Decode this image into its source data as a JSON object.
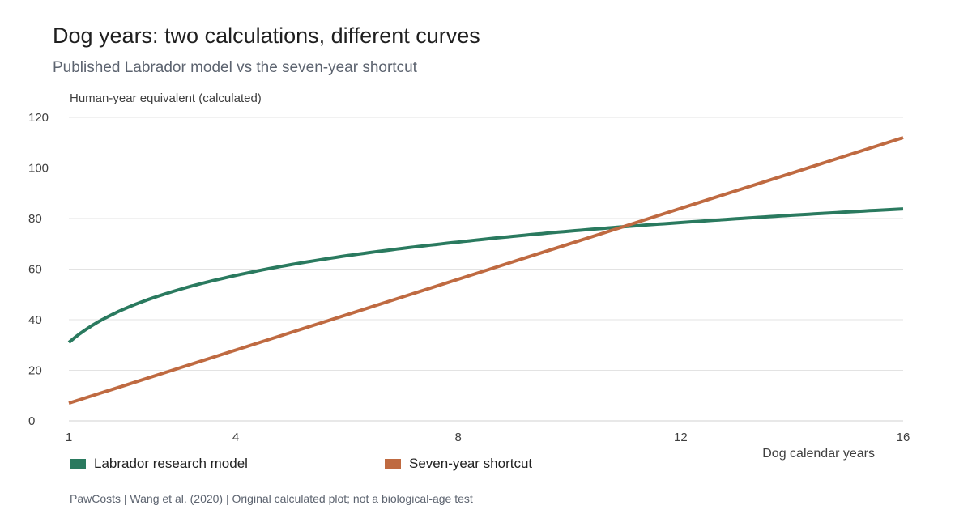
{
  "chart_data": {
    "type": "line",
    "title": "Dog years: two calculations, different curves",
    "subtitle": "Published Labrador model vs the seven-year shortcut",
    "ylabel": "Human-year equivalent (calculated)",
    "xlabel": "Dog calendar years",
    "xlim": [
      1,
      16
    ],
    "ylim": [
      0,
      120
    ],
    "x_ticks": [
      1,
      4,
      8,
      12,
      16
    ],
    "y_ticks": [
      0,
      20,
      40,
      60,
      80,
      100,
      120
    ],
    "grid": "horizontal",
    "legend_position": "bottom-left",
    "x": [
      1,
      2,
      3,
      4,
      5,
      6,
      7,
      8,
      9,
      10,
      11,
      12,
      13,
      14,
      15,
      16
    ],
    "series": [
      {
        "name": "Labrador research model",
        "color": "#2a7a5f",
        "values": [
          31,
          44.3,
          52.0,
          57.5,
          61.8,
          65.3,
          68.2,
          70.7,
          73.0,
          75.0,
          76.8,
          78.4,
          79.9,
          81.3,
          82.6,
          83.8
        ]
      },
      {
        "name": "Seven-year shortcut",
        "color": "#bf6a41",
        "values": [
          7,
          14,
          21,
          28,
          35,
          42,
          49,
          56,
          63,
          70,
          77,
          84,
          91,
          98,
          105,
          112
        ]
      }
    ],
    "source": "PawCosts | Wang et al. (2020) | Original calculated plot; not a biological-age test"
  }
}
